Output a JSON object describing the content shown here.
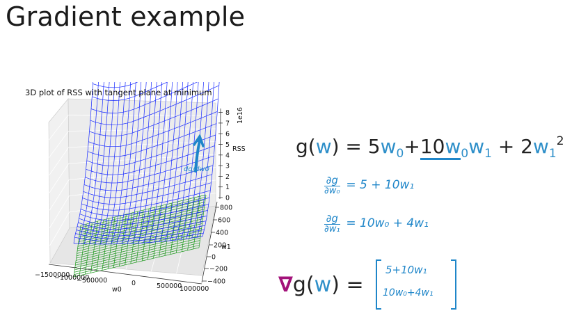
{
  "slide": {
    "title": "Gradient example"
  },
  "colors": {
    "accent_blue": "#2e8fc9",
    "handwriting_blue": "#1f86c9",
    "nabla_magenta": "#a3127a",
    "surface_blue": "#1a2cff",
    "plane_green": "#1f9a1f"
  },
  "chart_data": {
    "type": "3d-surface",
    "title": "3D plot of RSS with tangent plane at minimum",
    "xlabel": "w0",
    "ylabel": "w1",
    "zlabel": "RSS",
    "z_scale_label": "1e16",
    "x_ticks": [
      "−1500000",
      "−1000000",
      "−500000",
      "0",
      "500000",
      "1000000"
    ],
    "y_ticks": [
      "−400",
      "−200",
      "0",
      "200",
      "400",
      "600",
      "800"
    ],
    "z_ticks": [
      "0",
      "1",
      "2",
      "3",
      "4",
      "5",
      "6",
      "7",
      "8"
    ],
    "surfaces": [
      {
        "name": "RSS surface",
        "color": "#1a2cff"
      },
      {
        "name": "tangent plane",
        "color": "#1f9a1f"
      }
    ],
    "arrow_annotation": {
      "label": "dg/dw0",
      "color": "#1f86c9"
    }
  },
  "equations": {
    "main": {
      "g": "g(",
      "w": "w",
      "close_eq": ") = 5",
      "w0a": "w",
      "s0a": "0",
      "plus10": "+",
      "ten": "10",
      "w0b": "w",
      "s0b": "0",
      "w1a": "w",
      "s1a": "1",
      "mid": " + 2",
      "w1b": "w",
      "s1b": "1",
      "sq": "2"
    },
    "partial_w0": {
      "num": "∂g",
      "den": "∂w₀",
      "rhs": "= 5 + 10w₁"
    },
    "partial_w1": {
      "num": "∂g",
      "den": "∂w₁",
      "rhs": "= 10w₀ + 4w₁"
    },
    "gradient": {
      "nabla": "∇",
      "g": "g(",
      "w": "w",
      "rest": ") =",
      "row1": "5+10w₁",
      "row2": "10w₀+4w₁"
    }
  }
}
